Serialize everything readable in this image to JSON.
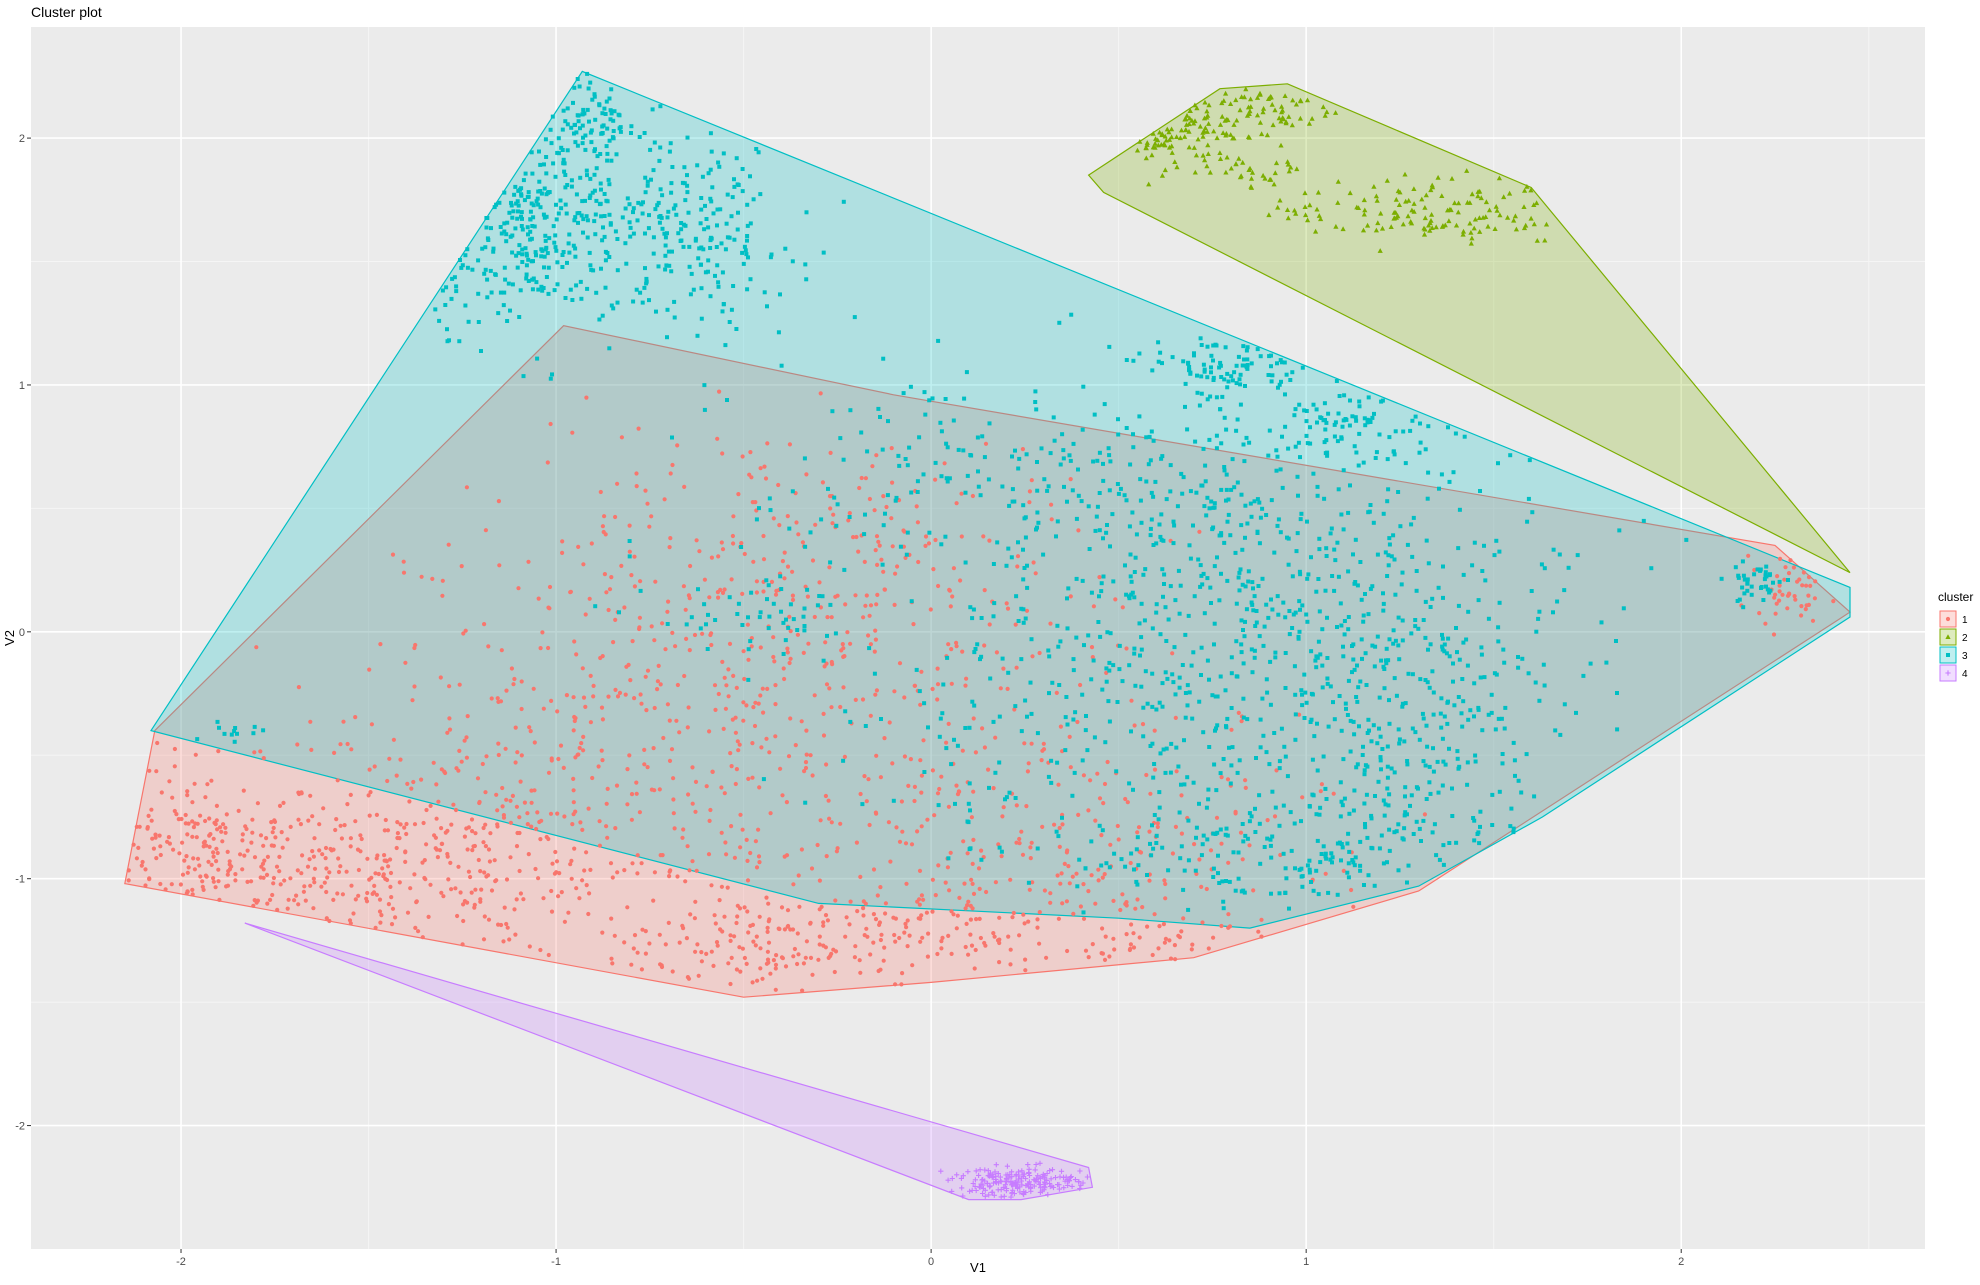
{
  "chart_data": {
    "type": "scatter",
    "title": "Cluster plot",
    "xlabel": "V1",
    "ylabel": "V2",
    "xlim": [
      -2.4,
      2.65
    ],
    "ylim": [
      -2.5,
      2.45
    ],
    "x_ticks": [
      -2,
      -1,
      0,
      1,
      2
    ],
    "y_ticks": [
      -2,
      -1,
      0,
      1,
      2
    ],
    "x_tick_labels": [
      "-2",
      "-1",
      "0",
      "1",
      "2"
    ],
    "y_tick_labels": [
      "-2",
      "-1",
      "0",
      "1",
      "2"
    ],
    "grid": true,
    "background": "#ebebeb",
    "legend": {
      "title": "cluster",
      "position": "right"
    },
    "series": [
      {
        "name": "1",
        "color": "#f8766d",
        "marker": "circle",
        "hull": [
          [
            -2.15,
            -1.02
          ],
          [
            -2.07,
            -0.4
          ],
          [
            -0.98,
            1.24
          ],
          [
            -0.1,
            0.96
          ],
          [
            2.25,
            0.35
          ],
          [
            2.45,
            0.08
          ],
          [
            2.42,
            0.05
          ],
          [
            1.3,
            -1.05
          ],
          [
            0.7,
            -1.32
          ],
          [
            0,
            -1.42
          ],
          [
            -0.5,
            -1.48
          ],
          [
            -2.15,
            -1.02
          ]
        ],
        "regions": [
          {
            "cx": -1.95,
            "cy": -0.95,
            "sx": 0.18,
            "sy": 0.2,
            "n": 200
          },
          {
            "cx": -1.45,
            "cy": -1.0,
            "sx": 0.22,
            "sy": 0.16,
            "n": 170
          },
          {
            "cx": -1.1,
            "cy": -0.8,
            "sx": 0.35,
            "sy": 0.3,
            "n": 280
          },
          {
            "cx": -0.6,
            "cy": -0.2,
            "sx": 0.4,
            "sy": 0.35,
            "n": 330
          },
          {
            "cx": -0.35,
            "cy": -1.28,
            "sx": 0.28,
            "sy": 0.12,
            "n": 170
          },
          {
            "cx": -0.4,
            "cy": 0.45,
            "sx": 0.35,
            "sy": 0.2,
            "n": 120
          },
          {
            "cx": 0.1,
            "cy": -0.9,
            "sx": 0.35,
            "sy": 0.25,
            "n": 170
          },
          {
            "cx": 0.35,
            "cy": -1.18,
            "sx": 0.3,
            "sy": 0.15,
            "n": 110
          },
          {
            "cx": 0.0,
            "cy": 0.0,
            "sx": 0.3,
            "sy": 0.4,
            "n": 130
          },
          {
            "cx": 0.65,
            "cy": -0.8,
            "sx": 0.3,
            "sy": 0.3,
            "n": 70
          },
          {
            "cx": 2.3,
            "cy": 0.2,
            "sx": 0.05,
            "sy": 0.07,
            "n": 45
          }
        ]
      },
      {
        "name": "2",
        "color": "#7cae00",
        "marker": "triangle",
        "hull": [
          [
            0.42,
            1.85
          ],
          [
            0.46,
            1.78
          ],
          [
            2.45,
            0.24
          ],
          [
            1.6,
            1.8
          ],
          [
            0.95,
            2.22
          ],
          [
            0.77,
            2.2
          ],
          [
            0.42,
            1.85
          ]
        ],
        "regions": [
          {
            "cx": 0.6,
            "cy": 2.05,
            "sx": 0.1,
            "sy": 0.08,
            "n": 90
          },
          {
            "cx": 0.88,
            "cy": 2.12,
            "sx": 0.1,
            "sy": 0.05,
            "n": 60
          },
          {
            "cx": 1.3,
            "cy": 1.7,
            "sx": 0.2,
            "sy": 0.07,
            "n": 140
          },
          {
            "cx": 0.88,
            "cy": 1.88,
            "sx": 0.08,
            "sy": 0.04,
            "n": 30
          }
        ]
      },
      {
        "name": "3",
        "color": "#00bfc4",
        "marker": "square",
        "hull": [
          [
            -2.08,
            -0.4
          ],
          [
            -0.93,
            2.27
          ],
          [
            2.45,
            0.18
          ],
          [
            2.45,
            0.06
          ],
          [
            1.63,
            -0.75
          ],
          [
            1.3,
            -1.03
          ],
          [
            0.85,
            -1.2
          ],
          [
            0.5,
            -1.16
          ],
          [
            -0.3,
            -1.1
          ],
          [
            -2.08,
            -0.4
          ]
        ],
        "regions": [
          {
            "cx": -1.1,
            "cy": 1.65,
            "sx": 0.14,
            "sy": 0.2,
            "n": 280
          },
          {
            "cx": -0.65,
            "cy": 1.62,
            "sx": 0.14,
            "sy": 0.2,
            "n": 220
          },
          {
            "cx": -0.9,
            "cy": 2.08,
            "sx": 0.06,
            "sy": 0.13,
            "n": 90
          },
          {
            "cx": 0.8,
            "cy": 1.07,
            "sx": 0.12,
            "sy": 0.07,
            "n": 90
          },
          {
            "cx": 0.3,
            "cy": 0.6,
            "sx": 0.4,
            "sy": 0.25,
            "n": 250
          },
          {
            "cx": 1.0,
            "cy": 0.3,
            "sx": 0.35,
            "sy": 0.3,
            "n": 320
          },
          {
            "cx": 0.6,
            "cy": -0.3,
            "sx": 0.45,
            "sy": 0.35,
            "n": 380
          },
          {
            "cx": 1.3,
            "cy": -0.35,
            "sx": 0.25,
            "sy": 0.35,
            "n": 250
          },
          {
            "cx": 1.0,
            "cy": -0.9,
            "sx": 0.3,
            "sy": 0.15,
            "n": 170
          },
          {
            "cx": 1.15,
            "cy": 0.85,
            "sx": 0.15,
            "sy": 0.08,
            "n": 70
          },
          {
            "cx": -0.45,
            "cy": 0.05,
            "sx": 0.15,
            "sy": 0.07,
            "n": 50
          },
          {
            "cx": 2.2,
            "cy": 0.2,
            "sx": 0.04,
            "sy": 0.05,
            "n": 40
          },
          {
            "cx": -1.85,
            "cy": -0.4,
            "sx": 0.05,
            "sy": 0.02,
            "n": 12
          }
        ]
      },
      {
        "name": "4",
        "color": "#c77cff",
        "marker": "plus",
        "hull": [
          [
            -1.83,
            -1.18
          ],
          [
            0.1,
            -2.3
          ],
          [
            0.24,
            -2.3
          ],
          [
            0.43,
            -2.25
          ],
          [
            0.42,
            -2.17
          ],
          [
            -1.83,
            -1.18
          ]
        ],
        "regions": [
          {
            "cx": 0.25,
            "cy": -2.23,
            "sx": 0.1,
            "sy": 0.03,
            "n": 200
          }
        ]
      }
    ]
  }
}
